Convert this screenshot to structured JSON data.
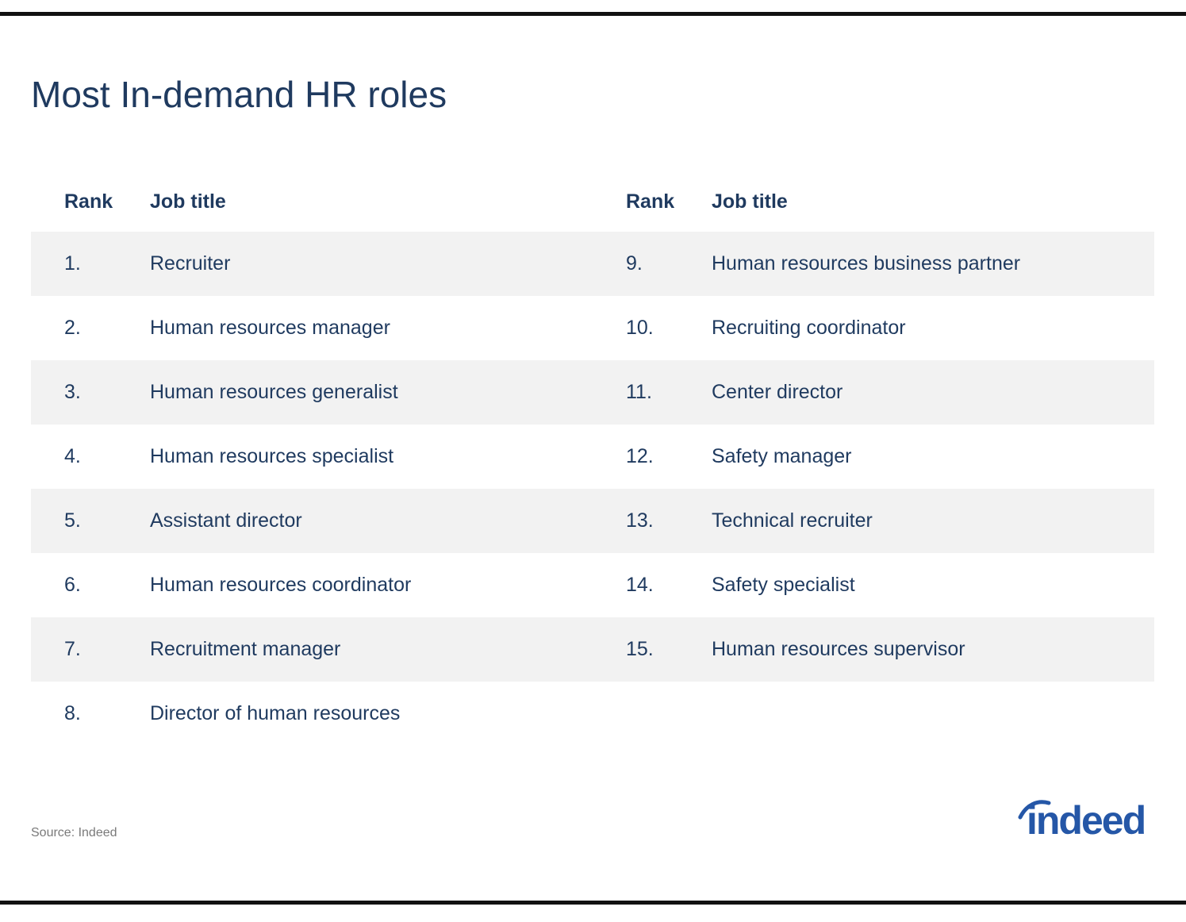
{
  "title": "Most In-demand HR roles",
  "headers": {
    "rank": "Rank",
    "job_title": "Job title"
  },
  "rows": [
    {
      "left_rank": "1.",
      "left_title": "Recruiter",
      "right_rank": "9.",
      "right_title": "Human resources business partner"
    },
    {
      "left_rank": "2.",
      "left_title": "Human resources manager",
      "right_rank": "10.",
      "right_title": "Recruiting coordinator"
    },
    {
      "left_rank": "3.",
      "left_title": "Human resources generalist",
      "right_rank": "11.",
      "right_title": "Center director"
    },
    {
      "left_rank": "4.",
      "left_title": "Human resources specialist",
      "right_rank": "12.",
      "right_title": "Safety manager"
    },
    {
      "left_rank": "5.",
      "left_title": "Assistant director",
      "right_rank": "13.",
      "right_title": "Technical recruiter"
    },
    {
      "left_rank": "6.",
      "left_title": "Human resources coordinator",
      "right_rank": "14.",
      "right_title": "Safety specialist"
    },
    {
      "left_rank": "7.",
      "left_title": "Recruitment manager",
      "right_rank": "15.",
      "right_title": "Human resources supervisor"
    },
    {
      "left_rank": "8.",
      "left_title": "Director of human resources",
      "right_rank": "",
      "right_title": ""
    }
  ],
  "source": "Source: Indeed",
  "logo": {
    "text": "indeed",
    "color": "#2557a7",
    "icon": "indeed-logo"
  },
  "colors": {
    "text": "#1f3a5f",
    "row_shade": "#f2f2f2",
    "rule": "#111111"
  }
}
